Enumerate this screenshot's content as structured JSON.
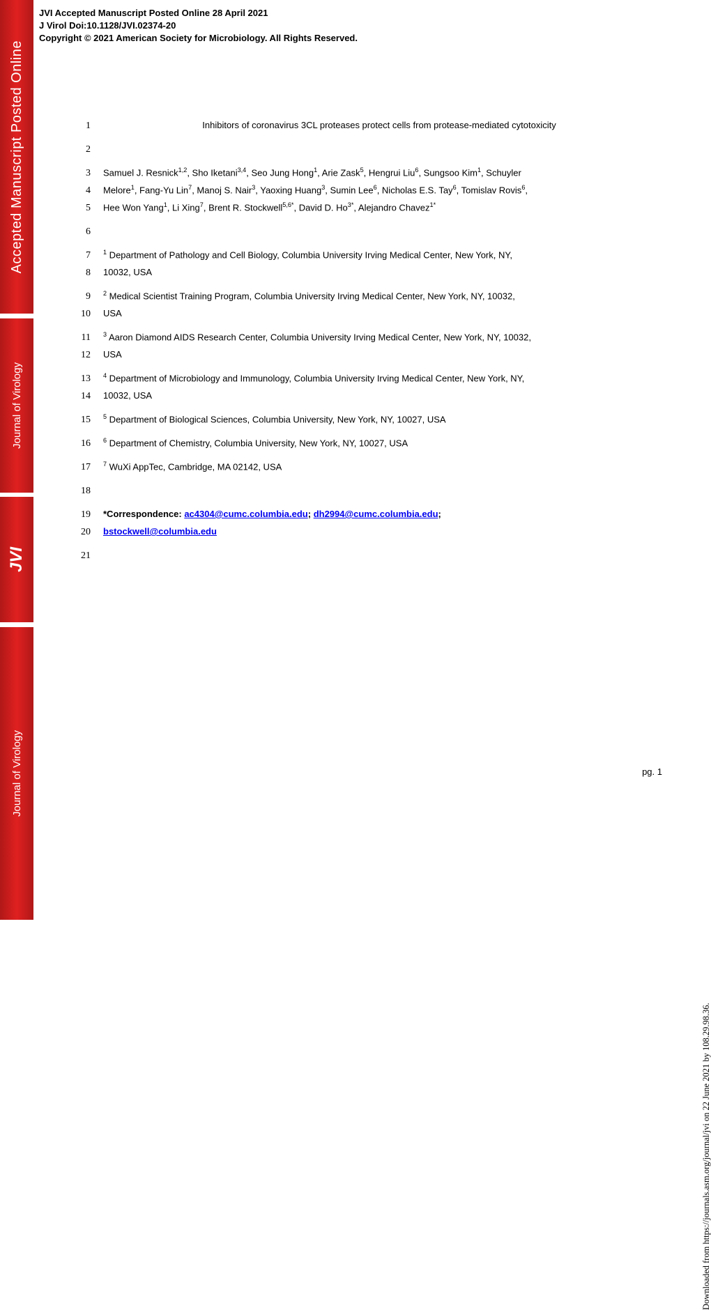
{
  "header": {
    "line1": "JVI Accepted Manuscript Posted Online 28 April 2021",
    "line2": "J Virol Doi:10.1128/JVI.02374-20",
    "line3": "Copyright © 2021 American Society for Microbiology. All Rights Reserved."
  },
  "sidebar": {
    "block1": "Accepted Manuscript Posted Online",
    "block2": "Journal of Virology",
    "block3": "JVI",
    "block4": "Journal of Virology"
  },
  "lines": {
    "l1": "Inhibitors of coronavirus 3CL proteases protect cells from protease-mediated cytotoxicity",
    "l3a": "Samuel J. Resnick",
    "l3b": ", Sho Iketani",
    "l3c": ", Seo Jung Hong",
    "l3d": ", Arie Zask",
    "l3e": ", Hengrui Liu",
    "l3f": ", Sungsoo Kim",
    "l3g": ", Schuyler",
    "l4a": "Melore",
    "l4b": ", Fang-Yu Lin",
    "l4c": ", Manoj S. Nair",
    "l4d": ", Yaoxing Huang",
    "l4e": ", Sumin Lee",
    "l4f": ", Nicholas E.S. Tay",
    "l4g": ", Tomislav Rovis",
    "l5a": "Hee Won Yang",
    "l5b": ", Li Xing",
    "l5c": ", Brent R. Stockwell",
    "l5d": ", David D. Ho",
    "l5e": ", Alejandro Chavez",
    "l7": " Department of Pathology and Cell Biology, Columbia University Irving Medical Center, New York, NY,",
    "l8": "10032, USA",
    "l9": " Medical Scientist Training Program, Columbia University Irving Medical Center, New York, NY, 10032,",
    "l10": "USA",
    "l11": " Aaron Diamond AIDS Research Center, Columbia University Irving Medical Center, New York, NY, 10032,",
    "l12": "USA",
    "l13": " Department of Microbiology and Immunology, Columbia University Irving Medical Center, New York, NY,",
    "l14": "10032, USA",
    "l15": " Department of Biological Sciences, Columbia University, New York, NY, 10027, USA",
    "l16": " Department of Chemistry, Columbia University, New York, NY, 10027, USA",
    "l17": " WuXi AppTec, Cambridge, MA 02142, USA",
    "l19a": "*Correspondence: ",
    "l19e1": "ac4304@cumc.columbia.edu",
    "l19s1": "; ",
    "l19e2": "dh2994@cumc.columbia.edu",
    "l19s2": ";",
    "l20e": "bstockwell@columbia.edu"
  },
  "lineNumbers": {
    "n1": "1",
    "n2": "2",
    "n3": "3",
    "n4": "4",
    "n5": "5",
    "n6": "6",
    "n7": "7",
    "n8": "8",
    "n9": "9",
    "n10": "10",
    "n11": "11",
    "n12": "12",
    "n13": "13",
    "n14": "14",
    "n15": "15",
    "n16": "16",
    "n17": "17",
    "n18": "18",
    "n19": "19",
    "n20": "20",
    "n21": "21"
  },
  "sup": {
    "s12": "1,2",
    "s34": "3,4",
    "s1": "1",
    "s5": "5",
    "s6": "6",
    "s7": "7",
    "s3": "3",
    "s56s": "5,6*",
    "s3s": "3*",
    "s1s": "1*",
    "a1": "1",
    "a2": "2",
    "a3": "3",
    "a4": "4",
    "a5": "5",
    "a6": "6",
    "a7": "7"
  },
  "pageNum": "pg. 1",
  "downloadNote": "Downloaded from https://journals.asm.org/journal/jvi on 22 June 2021 by 108.29.98.36.",
  "colors": {
    "sidebar_bg": "#c01818",
    "sidebar_text": "#ffffff",
    "link": "#0000ee",
    "text": "#000000",
    "bg": "#ffffff"
  }
}
